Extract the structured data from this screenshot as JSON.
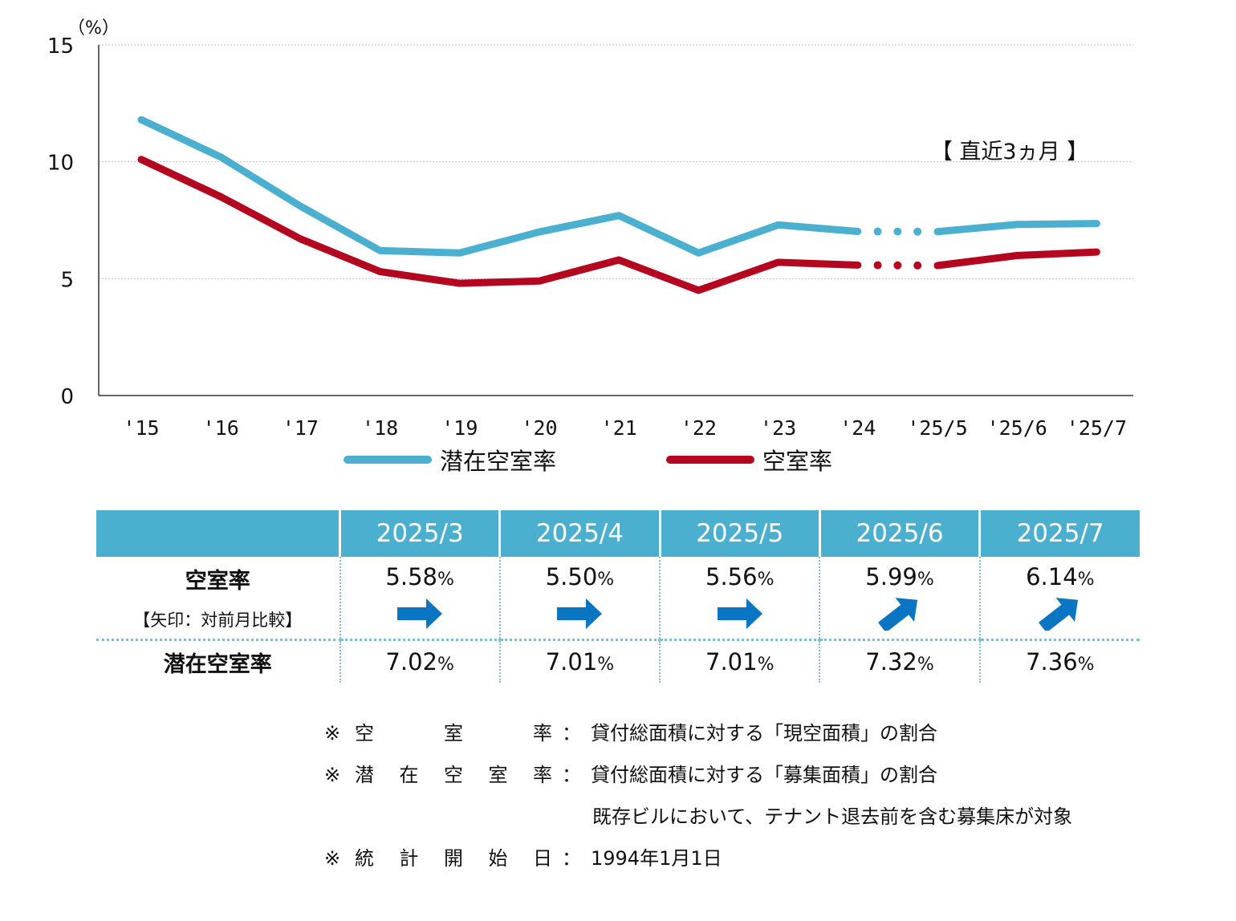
{
  "chart_data": {
    "type": "line",
    "unit_label": "（%）",
    "categories": [
      "'15",
      "'16",
      "'17",
      "'18",
      "'19",
      "'20",
      "'21",
      "'22",
      "'23",
      "'24",
      "'25/5",
      "'25/6",
      "'25/7"
    ],
    "y_ticks": [
      "0",
      "5",
      "10",
      "15"
    ],
    "ylim": [
      0,
      15
    ],
    "grid": true,
    "annotation": "【 直近3ヵ月 】",
    "series": [
      {
        "name": "潜在空室率",
        "color": "#4bb0d0",
        "values": [
          11.8,
          10.2,
          8.1,
          6.2,
          6.1,
          7.0,
          7.7,
          6.1,
          7.3,
          7.02,
          7.01,
          7.32,
          7.36
        ]
      },
      {
        "name": "空室率",
        "color": "#b5061f",
        "values": [
          10.1,
          8.5,
          6.7,
          5.3,
          4.8,
          4.9,
          5.8,
          4.5,
          5.7,
          5.58,
          5.56,
          5.99,
          6.14
        ]
      }
    ]
  },
  "table": {
    "headers": [
      "",
      "2025/3",
      "2025/4",
      "2025/5",
      "2025/6",
      "2025/7"
    ],
    "vacancy_label": "空室率",
    "vacancy_sublabel": "【矢印：対前月比較】",
    "vacancy_values": [
      "5.58",
      "5.50",
      "5.56",
      "5.99",
      "6.14"
    ],
    "arrows": [
      "right",
      "right",
      "right",
      "up-right",
      "up-right"
    ],
    "potential_label": "潜在空室率",
    "potential_values": [
      "7.02",
      "7.01",
      "7.01",
      "7.32",
      "7.36"
    ],
    "unit": "%",
    "arrow_color": "#0a75c2"
  },
  "notes": {
    "mark": "※",
    "colon": "：",
    "n1_term": [
      "空",
      "室",
      "率"
    ],
    "n1_text": "貸付総面積に対する「現空面積」の割合",
    "n2_term": [
      "潜",
      "在",
      "空",
      "室",
      "率"
    ],
    "n2_text": "貸付総面積に対する「募集面積」の割合",
    "n2_extra": "既存ビルにおいて、テナント退去前を含む募集床が対象",
    "n3_term": [
      "統",
      "計",
      "開",
      "始",
      "日"
    ],
    "n3_text": "1994年1月1日"
  }
}
